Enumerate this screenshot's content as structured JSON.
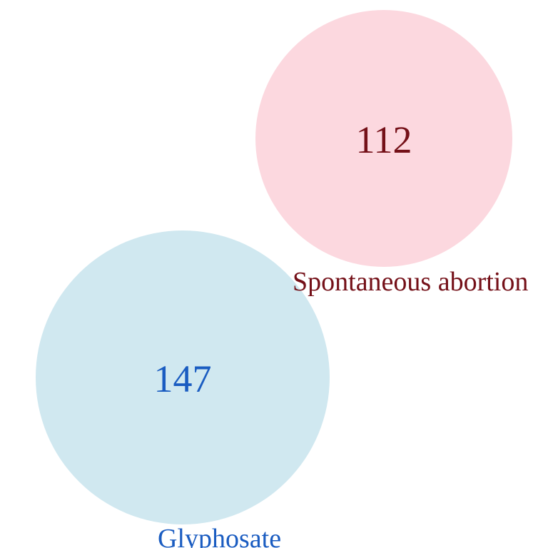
{
  "sets": {
    "abortion": {
      "label": "Spontaneous abortion",
      "count": "112",
      "fill_color": "#fcd8df",
      "text_color": "#741018"
    },
    "glyphosate": {
      "label": "Glyphosate",
      "count": "147",
      "fill_color": "#d0e8f0",
      "text_color": "#1a5cc1"
    }
  }
}
